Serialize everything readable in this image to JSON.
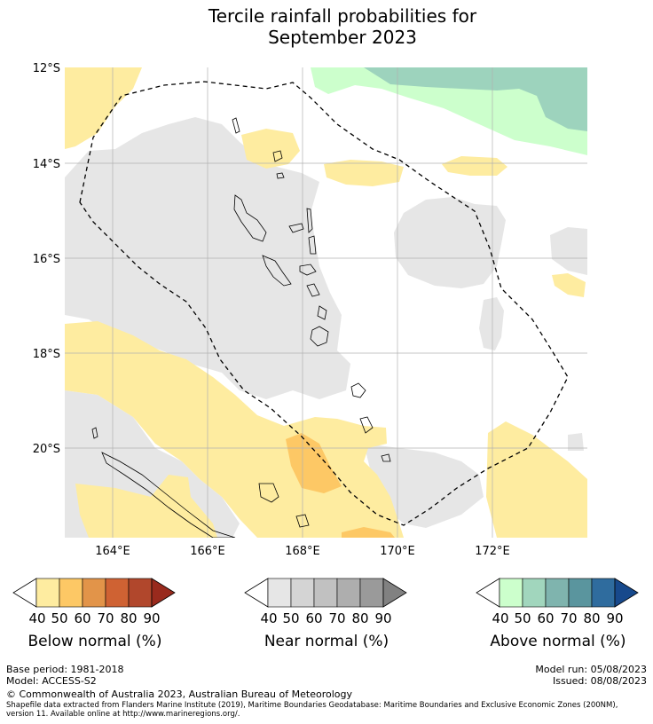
{
  "title": "Tercile rainfall probabilities for\nSeptember 2023",
  "axes": {
    "lat_labels": [
      "12°S",
      "14°S",
      "16°S",
      "18°S",
      "20°S"
    ],
    "lon_labels": [
      "164°E",
      "166°E",
      "168°E",
      "170°E",
      "172°E"
    ],
    "lon_range": [
      163.0,
      174.0
    ],
    "lat_range": [
      -12.0,
      -22.0
    ]
  },
  "colorbars": [
    {
      "name": "below",
      "title": "Below normal (%)",
      "ticks": [
        "40",
        "50",
        "60",
        "70",
        "80",
        "90"
      ],
      "colors": [
        "#ffffff",
        "#feeca0",
        "#fdc865",
        "#e29449",
        "#cf6233",
        "#b1472c",
        "#992a1d"
      ]
    },
    {
      "name": "near",
      "title": "Near normal (%)",
      "ticks": [
        "40",
        "50",
        "60",
        "70",
        "80",
        "90"
      ],
      "colors": [
        "#ffffff",
        "#e6e6e6",
        "#d4d4d4",
        "#c1c1c1",
        "#aeaeae",
        "#9a9a9a",
        "#818181"
      ]
    },
    {
      "name": "above",
      "title": "Above normal (%)",
      "ticks": [
        "40",
        "50",
        "60",
        "70",
        "80",
        "90"
      ],
      "colors": [
        "#ffffff",
        "#ccffcc",
        "#a1d6bd",
        "#7fb4ae",
        "#5a959e",
        "#2f6c9e",
        "#17498c"
      ]
    }
  ],
  "legend_map_colors": {
    "below_50": "#feeca0",
    "below_60": "#fdc865",
    "near_50": "#e6e6e6",
    "above_50": "#ccffcc",
    "above_60": "#9dd3bd"
  },
  "footer": {
    "base_period": "Base period: 1981-2018",
    "model": "Model: ACCESS-S2",
    "model_run": "Model run: 05/08/2023",
    "issued": "Issued: 08/08/2023",
    "copyright": "© Commonwealth of Australia 2023, Australian Bureau of Meteorology",
    "shapefile_note": "Shapefile data extracted from Flanders Marine Institute (2019), Maritime Boundaries Geodatabase: Maritime Boundaries and Exclusive Economic Zones (200NM), version 11. Available online at http://www.marineregions.org/."
  }
}
